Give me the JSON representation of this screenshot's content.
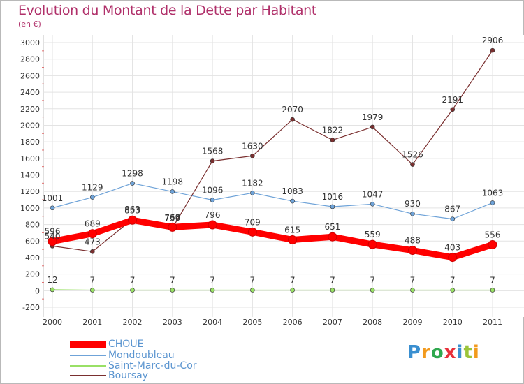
{
  "title": "Evolution du Montant de la Dette par Habitant",
  "unit": "(en €)",
  "chart_data": {
    "type": "line",
    "title": "Evolution du Montant de la Dette par Habitant",
    "ylabel": "(en €)",
    "xlabel": "",
    "ylim": [
      -200,
      3000
    ],
    "yticks": [
      -200,
      0,
      200,
      400,
      600,
      800,
      1000,
      1200,
      1400,
      1600,
      1800,
      2000,
      2200,
      2400,
      2600,
      2800,
      3000
    ],
    "categories": [
      "2000",
      "2001",
      "2002",
      "2003",
      "2004",
      "2005",
      "2006",
      "2007",
      "2008",
      "2009",
      "2010",
      "2011"
    ],
    "grid": true,
    "series": [
      {
        "name": "CHOUE",
        "color": "#ff0000",
        "values": [
          596,
          689,
          853,
          768,
          796,
          709,
          615,
          651,
          559,
          488,
          403,
          556
        ]
      },
      {
        "name": "Mondoubleau",
        "color": "#6fa3d8",
        "values": [
          1001,
          1129,
          1298,
          1198,
          1096,
          1182,
          1083,
          1016,
          1047,
          930,
          867,
          1063
        ]
      },
      {
        "name": "Saint-Marc-du-Cor",
        "color": "#99e066",
        "values": [
          12,
          7,
          7,
          7,
          7,
          7,
          7,
          7,
          7,
          7,
          7,
          7
        ]
      },
      {
        "name": "Boursay",
        "color": "#7a2f2f",
        "values": [
          540,
          473,
          863,
          759,
          1568,
          1630,
          2070,
          1822,
          1979,
          1526,
          2191,
          2906
        ]
      }
    ]
  },
  "logo": {
    "letters": [
      "P",
      "r",
      "o",
      "x",
      "i",
      "t",
      "i"
    ],
    "colors": [
      "#3a8fd0",
      "#f29a1d",
      "#2fa84f",
      "#e8303a",
      "#3a8fd0",
      "#9bc43a",
      "#f29a1d"
    ]
  }
}
